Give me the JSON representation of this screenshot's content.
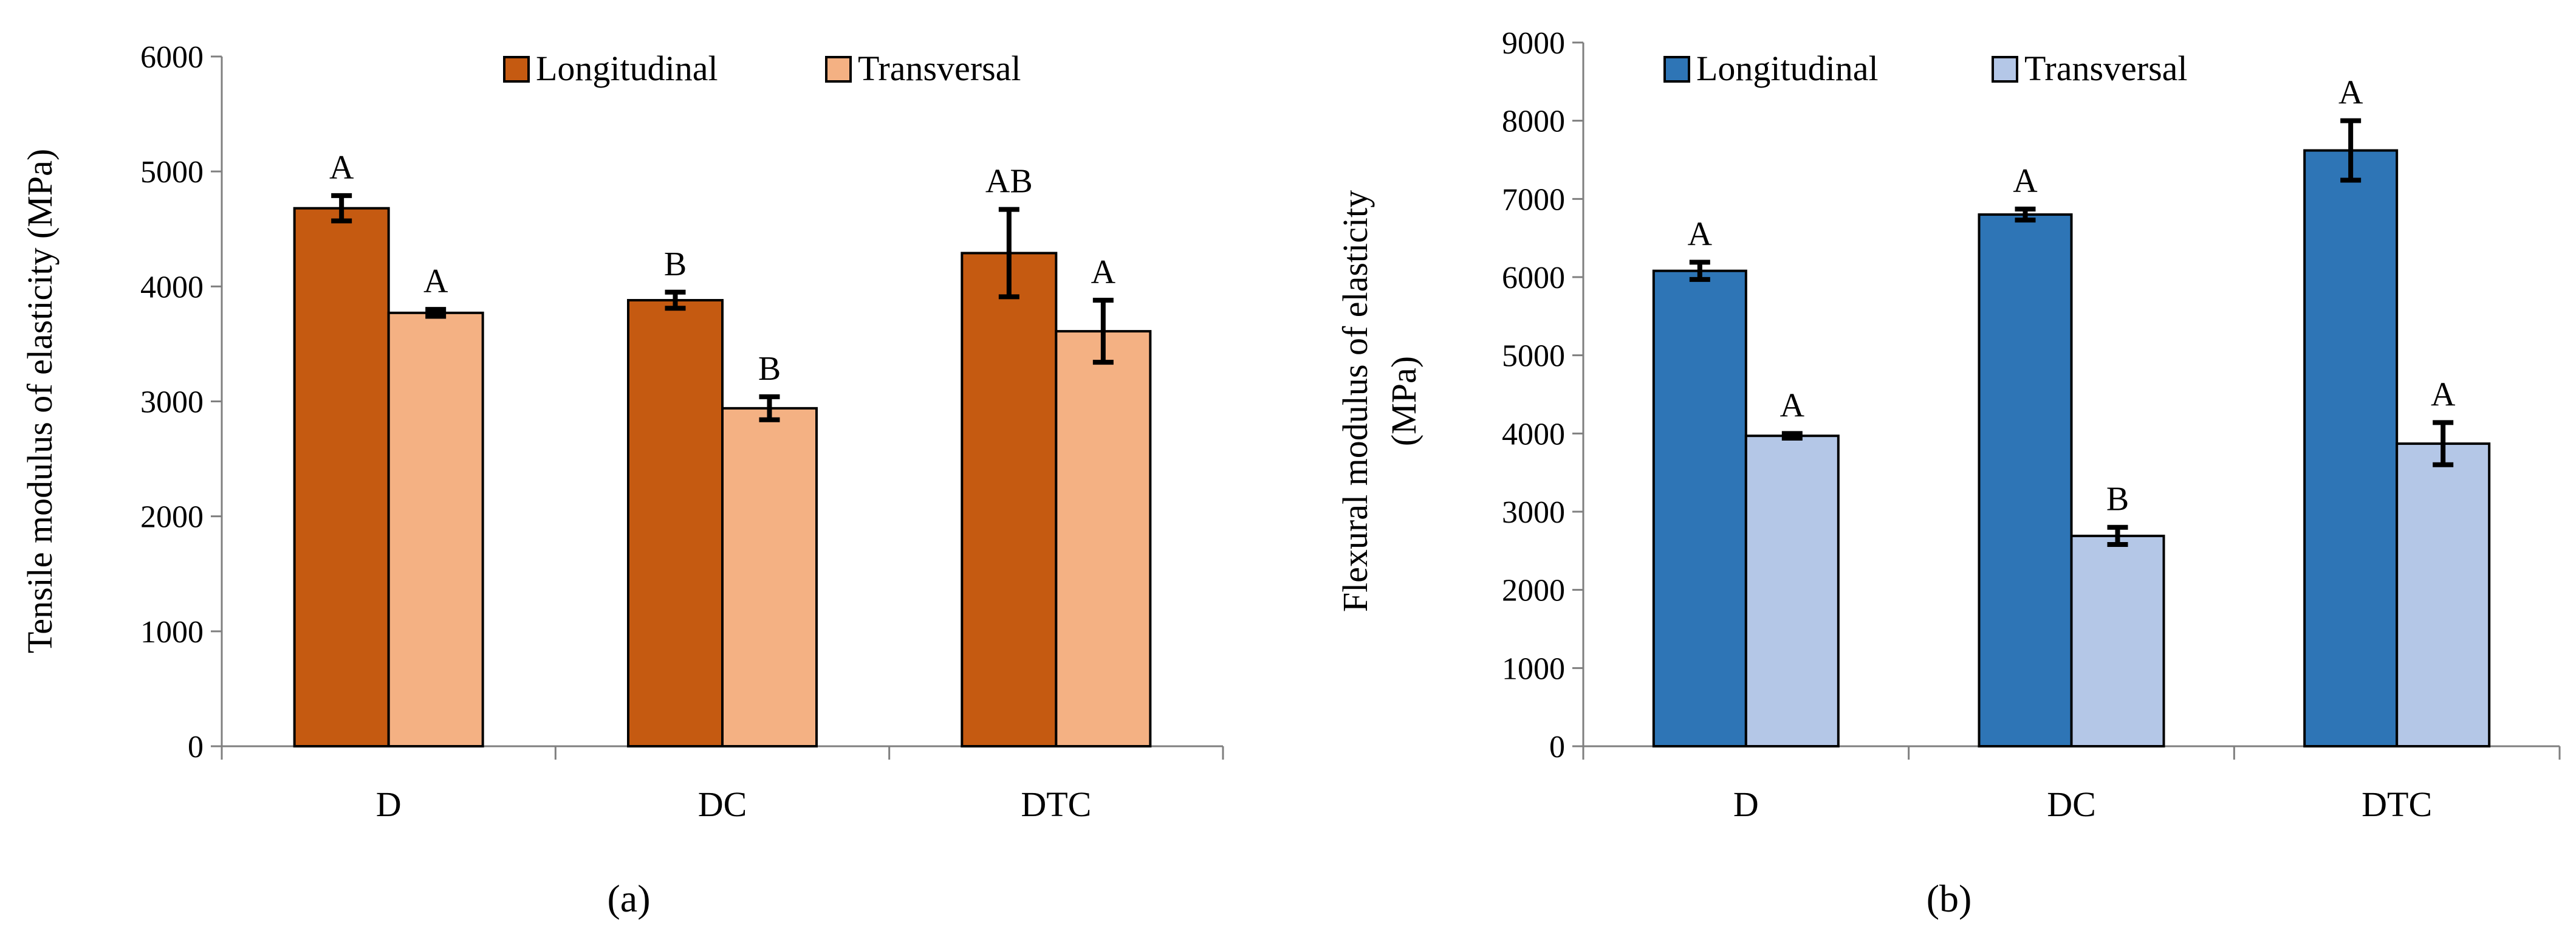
{
  "chart_data": [
    {
      "type": "bar",
      "panel_label": "(a)",
      "categories": [
        "D",
        "DC",
        "DTC"
      ],
      "series": [
        {
          "name": "Longitudinal",
          "color": "#C55A11",
          "values": [
            4680,
            3880,
            4290
          ],
          "errors": [
            110,
            70,
            380
          ],
          "significance": [
            "A",
            "B",
            "AB"
          ]
        },
        {
          "name": "Transversal",
          "color": "#F4B183",
          "values": [
            3770,
            2940,
            3610
          ],
          "errors": [
            30,
            100,
            270
          ],
          "significance": [
            "A",
            "B",
            "A"
          ]
        }
      ],
      "xlabel": "",
      "ylabel": "Tensile modulus of elasticity (MPa)",
      "ylim": [
        0,
        6000
      ],
      "yticks": [
        0,
        1000,
        2000,
        3000,
        4000,
        5000,
        6000
      ],
      "legend_position": "top-center",
      "grid": false
    },
    {
      "type": "bar",
      "panel_label": "(b)",
      "categories": [
        "D",
        "DC",
        "DTC"
      ],
      "series": [
        {
          "name": "Longitudinal",
          "color": "#2E75B6",
          "values": [
            6080,
            6800,
            7620
          ],
          "errors": [
            110,
            70,
            380
          ],
          "significance": [
            "A",
            "A",
            "A"
          ]
        },
        {
          "name": "Transversal",
          "color": "#B4C7E7",
          "values": [
            3970,
            2690,
            3870
          ],
          "errors": [
            30,
            110,
            270
          ],
          "significance": [
            "A",
            "B",
            "A"
          ]
        }
      ],
      "xlabel": "",
      "ylabel": "Flexural  modulus of elasticity (MPa)",
      "ylabel_lines": [
        "Flexural  modulus of elasticity",
        "(MPa)"
      ],
      "ylim": [
        0,
        9000
      ],
      "yticks": [
        0,
        1000,
        2000,
        3000,
        4000,
        5000,
        6000,
        7000,
        8000,
        9000
      ],
      "legend_position": "top-center",
      "grid": false
    }
  ]
}
